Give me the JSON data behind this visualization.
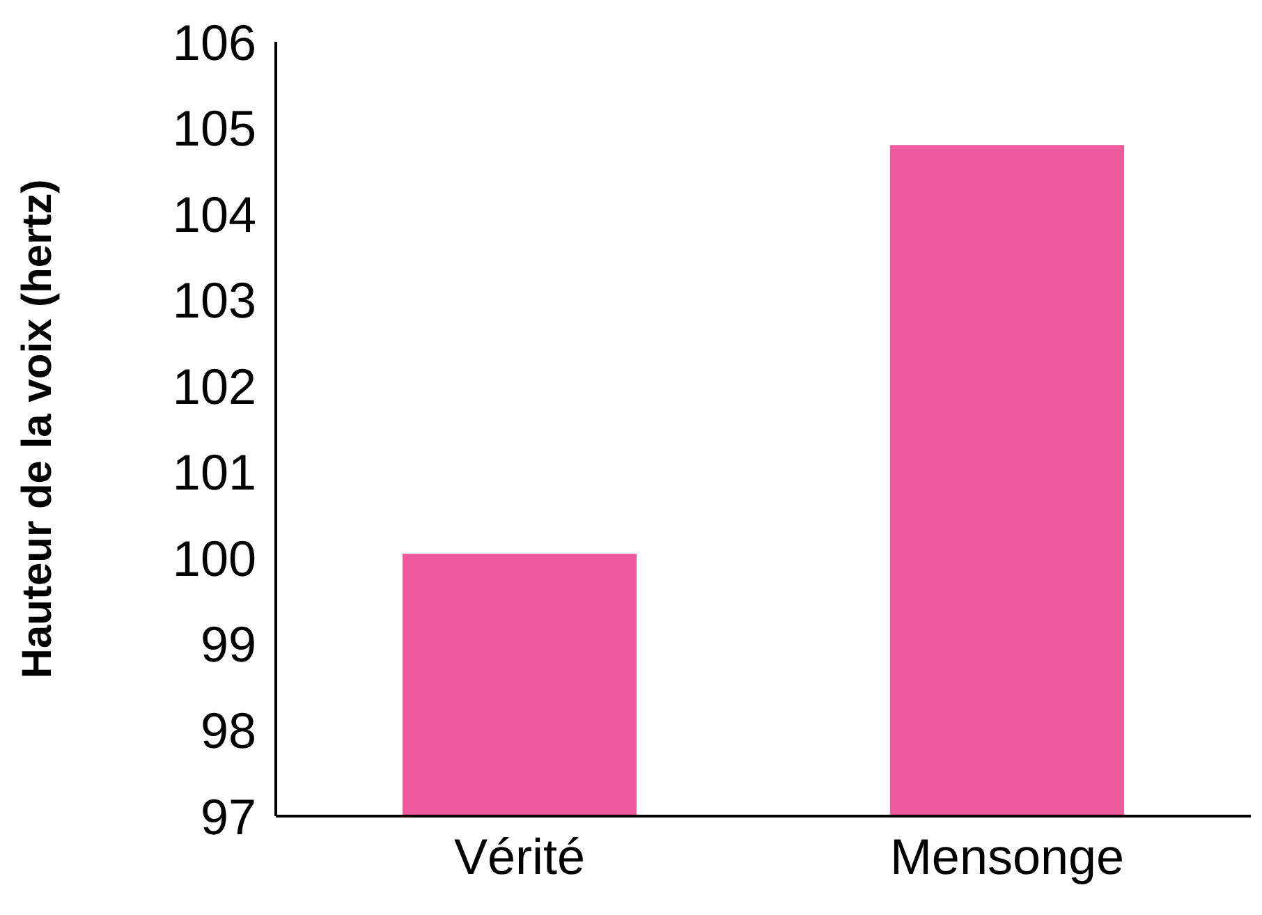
{
  "chart_data": {
    "type": "bar",
    "ylabel": "Hauteur de la voix (hertz)",
    "categories": [
      "Vérité",
      "Mensonge"
    ],
    "values": [
      100.05,
      104.8
    ],
    "color": "#ee5a9e",
    "ylim": [
      97,
      106
    ],
    "yticks": [
      97,
      98,
      99,
      100,
      101,
      102,
      103,
      104,
      105,
      106
    ],
    "grid": false
  }
}
